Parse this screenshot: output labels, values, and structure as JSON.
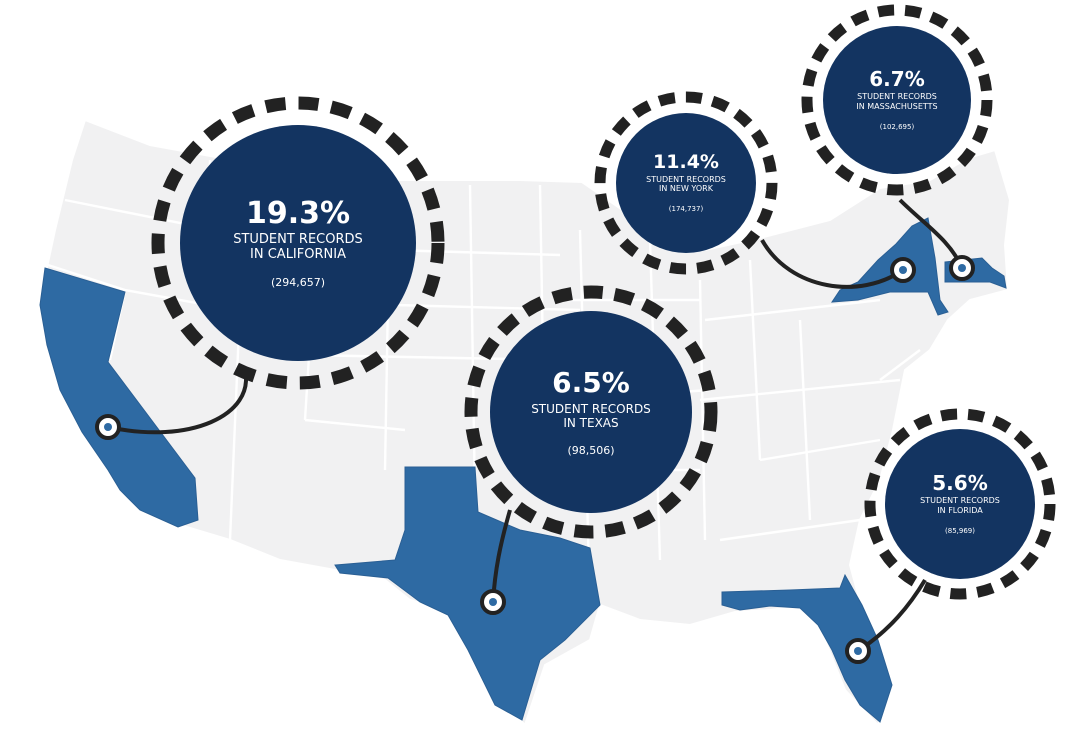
{
  "map": {
    "region": "United States",
    "highlight_color": "#2e6aa3",
    "base_color": "#f1f1f2",
    "bubble_color": "#133461",
    "dash_color": "#222222"
  },
  "callouts": [
    {
      "state": "California",
      "percent": "19.3%",
      "line1": "STUDENT RECORDS",
      "line2": "IN CALIFORNIA",
      "count": "(294,657)"
    },
    {
      "state": "New York",
      "percent": "11.4%",
      "line1": "STUDENT RECORDS",
      "line2": "IN NEW YORK",
      "count": "(174,737)"
    },
    {
      "state": "Massachusetts",
      "percent": "6.7%",
      "line1": "STUDENT RECORDS",
      "line2": "IN MASSACHUSETTS",
      "count": "(102,695)"
    },
    {
      "state": "Texas",
      "percent": "6.5%",
      "line1": "STUDENT RECORDS",
      "line2": "IN TEXAS",
      "count": "(98,506)"
    },
    {
      "state": "Florida",
      "percent": "5.6%",
      "line1": "STUDENT RECORDS",
      "line2": "IN FLORIDA",
      "count": "(85,969)"
    }
  ]
}
